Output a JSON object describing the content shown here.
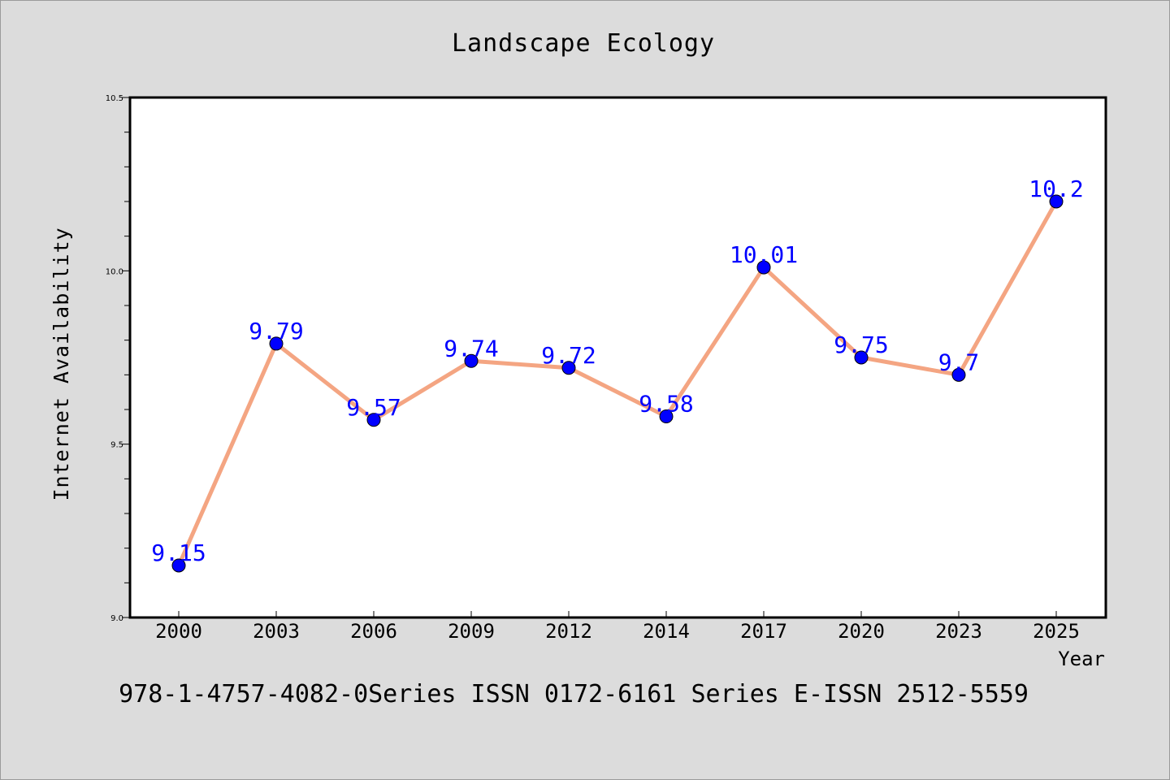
{
  "chart_data": {
    "type": "line",
    "title": "Landscape Ecology",
    "xlabel": "Year",
    "ylabel": "Internet Availability",
    "categories": [
      "2000",
      "2003",
      "2006",
      "2009",
      "2012",
      "2014",
      "2017",
      "2020",
      "2023",
      "2025"
    ],
    "series": [
      {
        "values": [
          9.15,
          9.79,
          9.57,
          9.74,
          9.72,
          9.58,
          10.01,
          9.75,
          9.7,
          10.2
        ],
        "labels": [
          "9.15",
          "9.79",
          "9.57",
          "9.74",
          "9.72",
          "9.58",
          "10.01",
          "9.75",
          "9.7",
          "10.2"
        ],
        "line_color": "#f4a582",
        "marker_color": "#0000ff"
      }
    ],
    "ylim": [
      9.0,
      10.5
    ],
    "yticks": [
      "9.0",
      "9.5",
      "10.0",
      "10.5"
    ],
    "yticks_values": [
      9.0,
      9.5,
      10.0,
      10.5
    ],
    "grid": false,
    "label_color": "#0000ff"
  },
  "footer": {
    "text": "978-1-4757-4082-0Series ISSN 0172-6161 Series E-ISSN 2512-5559"
  }
}
